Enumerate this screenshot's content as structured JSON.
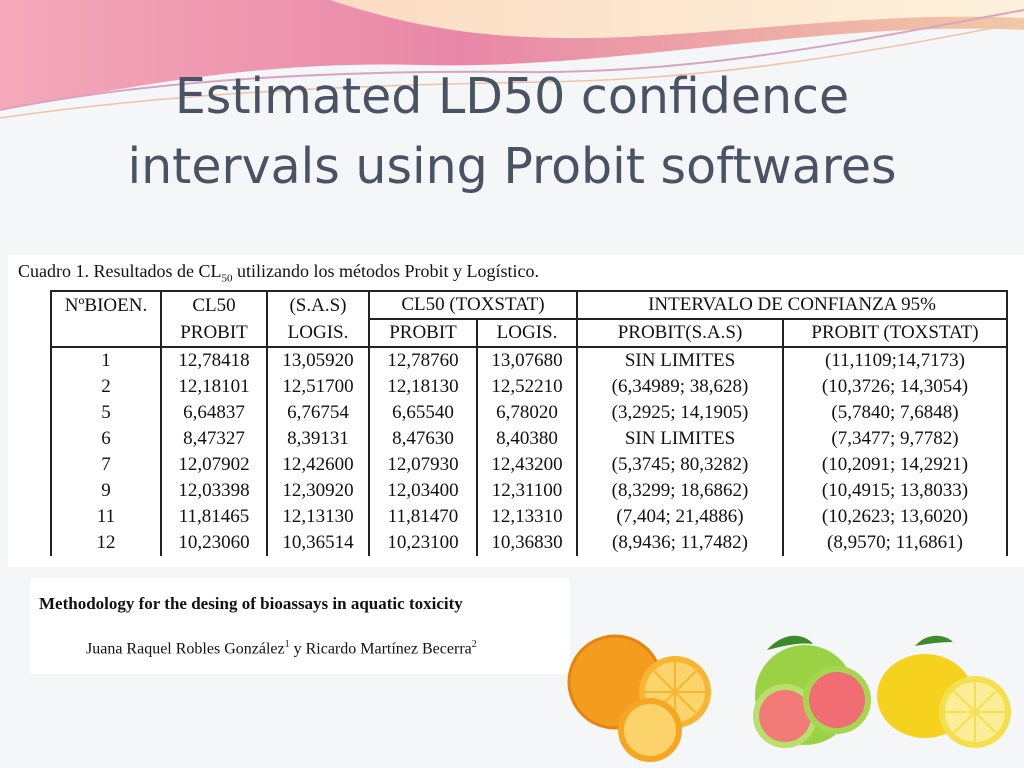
{
  "slide": {
    "title_line1": "Estimated LD50 confidence",
    "title_line2": "intervals using Probit softwares"
  },
  "table": {
    "caption_pre": "Cuadro 1. Resultados de CL",
    "caption_sub": "50",
    "caption_post": " utilizando los métodos Probit y Logístico.",
    "header_row1": [
      "NºBIOEN.",
      "CL50",
      "(S.A.S)",
      "CL50 (TOXSTAT)",
      "INTERVALO DE CONFIANZA 95%"
    ],
    "header_row2": [
      "PROBIT",
      "LOGIS.",
      "PROBIT",
      "LOGIS.",
      "PROBIT(S.A.S)",
      "PROBIT (TOXSTAT)"
    ],
    "rows": [
      [
        "1",
        "12,78418",
        "13,05920",
        "12,78760",
        "13,07680",
        "SIN LIMITES",
        "(11,1109;14,7173)"
      ],
      [
        "2",
        "12,18101",
        "12,51700",
        "12,18130",
        "12,52210",
        "(6,34989; 38,628)",
        "(10,3726; 14,3054)"
      ],
      [
        "5",
        "6,64837",
        "6,76754",
        "6,65540",
        "6,78020",
        "(3,2925; 14,1905)",
        "(5,7840; 7,6848)"
      ],
      [
        "6",
        "8,47327",
        "8,39131",
        "8,47630",
        "8,40380",
        "SIN LIMITES",
        "(7,3477; 9,7782)"
      ],
      [
        "7",
        "12,07902",
        "12,42600",
        "12,07930",
        "12,43200",
        "(5,3745; 80,3282)",
        "(10,2091; 14,2921)"
      ],
      [
        "9",
        "12,03398",
        "12,30920",
        "12,03400",
        "12,31100",
        "(8,3299; 18,6862)",
        "(10,4915; 13,8033)"
      ],
      [
        "11",
        "11,81465",
        "12,13130",
        "11,81470",
        "12,13310",
        "(7,404; 21,4886)",
        "(10,2623; 13,6020)"
      ],
      [
        "12",
        "10,23060",
        "10,36514",
        "10,23100",
        "10,36830",
        "(8,9436; 11,7482)",
        "(8,9570; 11,6861)"
      ]
    ]
  },
  "paper": {
    "title": "Methodology for the desing of bioassays in aquatic toxicity",
    "author1": "Juana Raquel Robles González",
    "author1_sup": "1",
    "connector": " y Ricardo Martínez Becerra",
    "author2_sup": "2"
  },
  "colors": {
    "title": "#4a5363",
    "wave_pink": "#e07a9b",
    "wave_peach": "#f6c8a4",
    "wave_cream": "#fbe9c8"
  },
  "images": {
    "fruits": [
      "orange-icon",
      "grapefruit-icon",
      "lemon-icon"
    ]
  }
}
